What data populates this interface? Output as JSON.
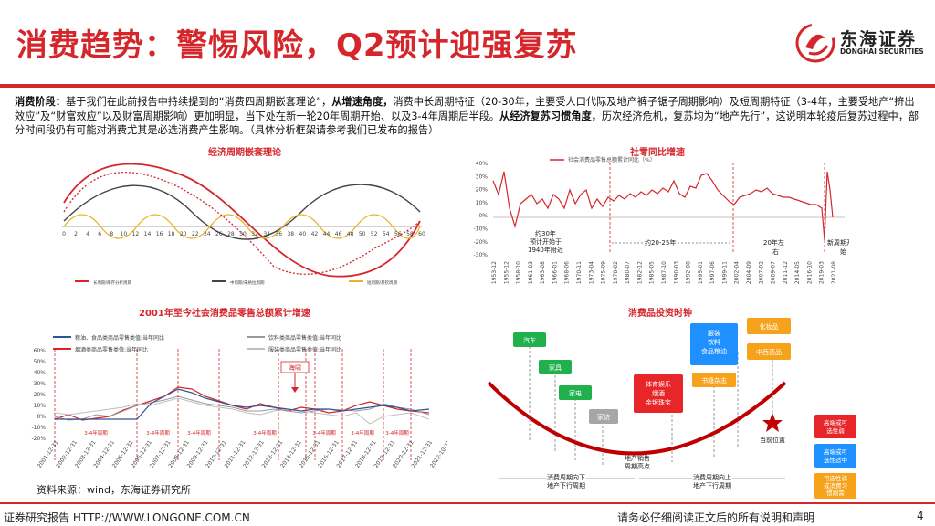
{
  "header": {
    "title": "消费趋势：警惕风险，Q2预计迎强复苏",
    "logo_cn": "东海证券",
    "logo_en": "DONGHAI SECURITIES"
  },
  "intro": {
    "p1": "消费阶段：",
    "p2": "基于我们在此前报告中持续提到的“消费四周期嵌套理论”，",
    "p3": "从增速角度，",
    "p4": "消费中长周期特征（20-30年，主要受人口代际及地产裤子锯子周期影响）及短周期特征（3-4年，主要受地产“挤出效应”及“财富效应”以及财富周期影响）更加明显，当下处在新一轮20年周期开始、以及3-4年周期后半段。",
    "p5": "从经济复苏习惯角度，",
    "p6": "历次经济危机，复苏均为“地产先行”，这说明本轮疫后复苏过程中，部分时间段仍有可能对消费尤其是必选消费产生影响。（具体分析框架请参考我们已发布的报告）"
  },
  "chart1": {
    "title": "经济周期嵌套理论",
    "ticks": [
      "0",
      "2",
      "4",
      "6",
      "8",
      "10",
      "12",
      "14",
      "16",
      "18",
      "20",
      "22",
      "24",
      "26",
      "28",
      "30",
      "32",
      "34",
      "36",
      "38",
      "40",
      "42",
      "44",
      "46",
      "48",
      "50",
      "52",
      "54",
      "56",
      "58",
      "60"
    ],
    "legend": [
      "长周期/库存分析周期",
      "中周期/朱格拉周期",
      "短周期/基钦周期"
    ]
  },
  "chart2": {
    "title": "社零同比增速",
    "legend": "社会消费品零售总额累计同比（%）",
    "yticks": [
      "40%",
      "30%",
      "20%",
      "10%",
      "0%",
      "-10%",
      "-20%",
      "-30%"
    ],
    "xticks": [
      "1953-12",
      "1955-12",
      "1958-10",
      "1961-03",
      "1963-08",
      "1966-01",
      "1968-06",
      "1970-11",
      "1973-04",
      "1975-09",
      "1978-02",
      "1980-07",
      "1982-12",
      "1985-05",
      "1987-10",
      "1990-03",
      "1992-08",
      "1995-01",
      "1997-06",
      "1999-11",
      "2002-04",
      "2004-09",
      "2007-02",
      "2009-07",
      "2011-12",
      "2014-05",
      "2016-10",
      "2019-03",
      "2021-08"
    ],
    "annotations": [
      "约30年",
      "预计开始于",
      "1940年附近",
      "约20-25年",
      "20年左",
      "右",
      "新周期开",
      "始"
    ]
  },
  "chart3": {
    "title": "2001年至今社会消费品零售总额累计增速",
    "legend": [
      "粮油、食品类商品零售类值:当年同比",
      "饮料类商品零售类值:当年同比",
      "烟酒类商品零售类值:当年同比",
      "服装类商品零售类值:当年同比"
    ],
    "yticks": [
      "60%",
      "50%",
      "40%",
      "30%",
      "20%",
      "10%",
      "0%",
      "-10%",
      "-20%"
    ],
    "xticks": [
      "2001-12-31",
      "2002-12-31",
      "2003-12-31",
      "2004-12-31",
      "2005-12-31",
      "2006-12-31",
      "2007-12-31",
      "2008-12-31",
      "2009-12-31",
      "2010-12-31",
      "2011-12-31",
      "2012-12-31",
      "2013-12-31",
      "2014-12-31",
      "2015-12-31",
      "2016-12-31",
      "2017-12-31",
      "2018-12-31",
      "2019-12-31",
      "2020-12-31",
      "2021-12-31",
      "2022-10-31"
    ],
    "cycle_label": "3-4年周期",
    "callout": "海啸"
  },
  "chart4": {
    "title": "消费品投资时钟",
    "items": [
      "汽车",
      "家具",
      "家电",
      "家纺",
      "体育娱乐\n烟酒\n金银珠宝",
      "书籍杂志",
      "服装\n饮料\n食品粮油",
      "化妆品",
      "中西药品"
    ],
    "bottom_labels": [
      "地产销售\n周期高点",
      "消费周期向下\n地产下行周期",
      "消费周期向上\n地产下行周期",
      "当前位置"
    ],
    "legend": [
      "高端或可\n选性弱",
      "高端或可\n选性适中",
      "可选性弱\n或消费习\n惯刚需"
    ],
    "colors": {
      "red": "#e8262a",
      "blue": "#1e90ff",
      "orange": "#f7a21b",
      "gray": "#a6a6a6"
    }
  },
  "source": "资料来源：wind，东海证券研究所",
  "footer": {
    "left": "证券研究报告 HTTP://WWW.LONGONE.COM.CN",
    "right": "请务必仔细阅读正文后的所有说明和声明",
    "page": "4"
  }
}
